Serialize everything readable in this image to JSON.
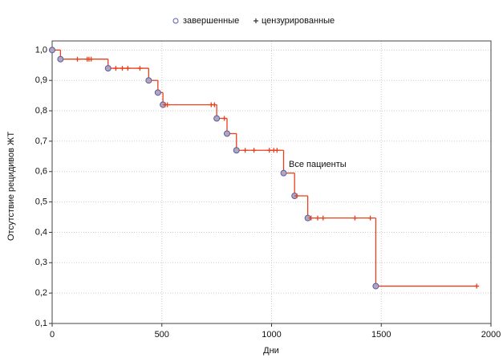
{
  "chart_data": {
    "type": "step",
    "annotation": "Все пациенты",
    "xlabel": "Дни",
    "ylabel": "Отсутствие рецидивов ЖТ",
    "xlim": [
      0,
      2000
    ],
    "xticks": [
      0,
      500,
      1000,
      1500,
      2000
    ],
    "ylim": [
      0.1,
      1.03
    ],
    "yticks": [
      {
        "value": 0.1,
        "label": "0,1"
      },
      {
        "value": 0.2,
        "label": "0,2"
      },
      {
        "value": 0.3,
        "label": "0,3"
      },
      {
        "value": 0.4,
        "label": "0,4"
      },
      {
        "value": 0.5,
        "label": "0,5"
      },
      {
        "value": 0.6,
        "label": "0,6"
      },
      {
        "value": 0.7,
        "label": "0,7"
      },
      {
        "value": 0.8,
        "label": "0,8"
      },
      {
        "value": 0.9,
        "label": "0,9"
      },
      {
        "value": 1.0,
        "label": "1,0"
      }
    ],
    "grid": true,
    "line_color": "#e8401c",
    "series": [
      {
        "name": "завершенные",
        "color": "#5a5aa8",
        "x": [
          0,
          38,
          255,
          440,
          482,
          505,
          750,
          797,
          840,
          1055,
          1105,
          1165,
          1475
        ],
        "values": [
          1.0,
          0.97,
          0.94,
          0.9,
          0.86,
          0.82,
          0.775,
          0.725,
          0.67,
          0.595,
          0.52,
          0.447,
          0.223
        ]
      },
      {
        "name": "цензурированные",
        "color": "#e8401c",
        "x": [
          115,
          160,
          168,
          178,
          290,
          320,
          345,
          400,
          515,
          525,
          725,
          740,
          785,
          880,
          920,
          990,
          1010,
          1025,
          1115,
          1180,
          1210,
          1235,
          1380,
          1450,
          1935
        ],
        "values": [
          0.97,
          0.97,
          0.97,
          0.97,
          0.94,
          0.94,
          0.94,
          0.94,
          0.82,
          0.82,
          0.82,
          0.82,
          0.775,
          0.67,
          0.67,
          0.67,
          0.67,
          0.67,
          0.52,
          0.447,
          0.447,
          0.447,
          0.447,
          0.447,
          0.223
        ]
      }
    ]
  }
}
